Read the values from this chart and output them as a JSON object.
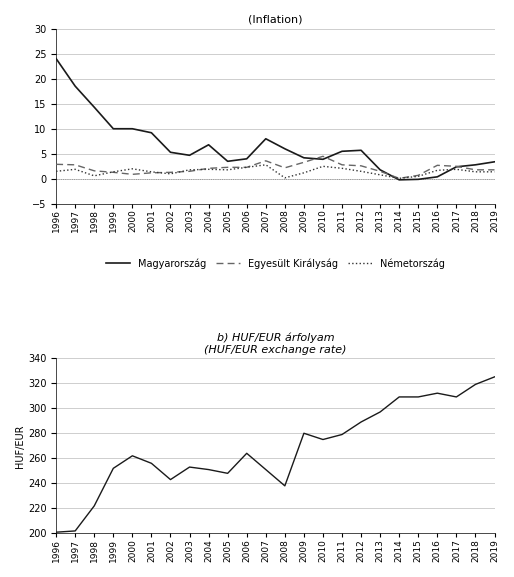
{
  "title_top": "(Inflation)",
  "title_bottom_a": "b) HUF/EUR árfolyam",
  "title_bottom_b": "(HUF/EUR exchange rate)",
  "ylabel_bottom": "HUF/EUR",
  "legend_labels": [
    "Magyarország",
    "Egyesült Királyság",
    "Németország"
  ],
  "years_inf": [
    1996,
    1997,
    1998,
    1999,
    2000,
    2001,
    2002,
    2003,
    2004,
    2005,
    2006,
    2007,
    2008,
    2009,
    2010,
    2011,
    2012,
    2013,
    2014,
    2015,
    2016,
    2017,
    2018,
    2019
  ],
  "inflation_hungary": [
    24.0,
    18.5,
    14.3,
    10.0,
    10.0,
    9.2,
    5.3,
    4.7,
    6.8,
    3.5,
    4.0,
    8.0,
    6.0,
    4.2,
    3.9,
    5.5,
    5.7,
    1.8,
    -0.2,
    -0.1,
    0.4,
    2.4,
    2.8,
    3.4
  ],
  "inflation_uk": [
    2.9,
    2.8,
    1.6,
    1.3,
    0.9,
    1.2,
    1.3,
    1.5,
    2.1,
    2.3,
    2.3,
    3.6,
    2.2,
    3.3,
    4.5,
    2.8,
    2.6,
    1.5,
    0.1,
    0.7,
    2.7,
    2.5,
    1.8,
    1.8
  ],
  "inflation_germany": [
    1.5,
    1.9,
    0.6,
    1.4,
    2.0,
    1.4,
    1.0,
    1.8,
    1.9,
    1.8,
    2.3,
    2.8,
    0.2,
    1.2,
    2.5,
    2.1,
    1.5,
    0.8,
    0.1,
    0.5,
    1.7,
    1.9,
    1.4,
    1.4
  ],
  "years_huf": [
    1996,
    1997,
    1998,
    1999,
    2000,
    2001,
    2002,
    2003,
    2004,
    2005,
    2006,
    2007,
    2008,
    2009,
    2010,
    2011,
    2012,
    2013,
    2014,
    2015,
    2016,
    2017,
    2018,
    2019
  ],
  "huf_eur": [
    201,
    202,
    222,
    252,
    262,
    256,
    243,
    253,
    251,
    248,
    264,
    251,
    238,
    280,
    275,
    279,
    289,
    297,
    309,
    309,
    312,
    309,
    319,
    325
  ],
  "background_color": "#ffffff",
  "line_color_hun": "#1a1a1a",
  "line_color_uk": "#666666",
  "line_color_ger": "#333333",
  "grid_color": "#bbbbbb"
}
